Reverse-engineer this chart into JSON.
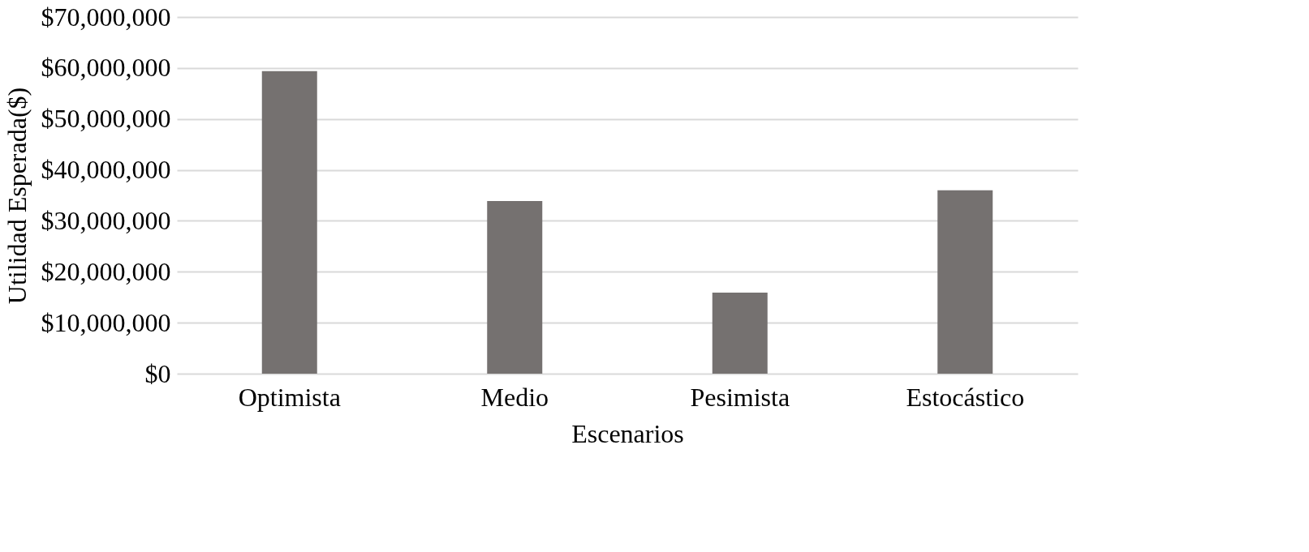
{
  "chart_data": {
    "type": "bar",
    "xlabel": "Escenarios",
    "ylabel": "Utilidad Esperada($)",
    "categories": [
      "Optimista",
      "Medio",
      "Pesimista",
      "Estocástico"
    ],
    "values": [
      59400000,
      33900000,
      15900000,
      36000000
    ],
    "color": "#757170",
    "ylim": [
      0,
      70000000
    ],
    "yticks": [
      {
        "value": 0,
        "label": "$0"
      },
      {
        "value": 10000000,
        "label": "$10,000,000"
      },
      {
        "value": 20000000,
        "label": "$20,000,000"
      },
      {
        "value": 30000000,
        "label": "$30,000,000"
      },
      {
        "value": 40000000,
        "label": "$40,000,000"
      },
      {
        "value": 50000000,
        "label": "$50,000,000"
      },
      {
        "value": 60000000,
        "label": "$60,000,000"
      },
      {
        "value": 70000000,
        "label": "$70,000,000"
      }
    ],
    "grid": "y"
  }
}
